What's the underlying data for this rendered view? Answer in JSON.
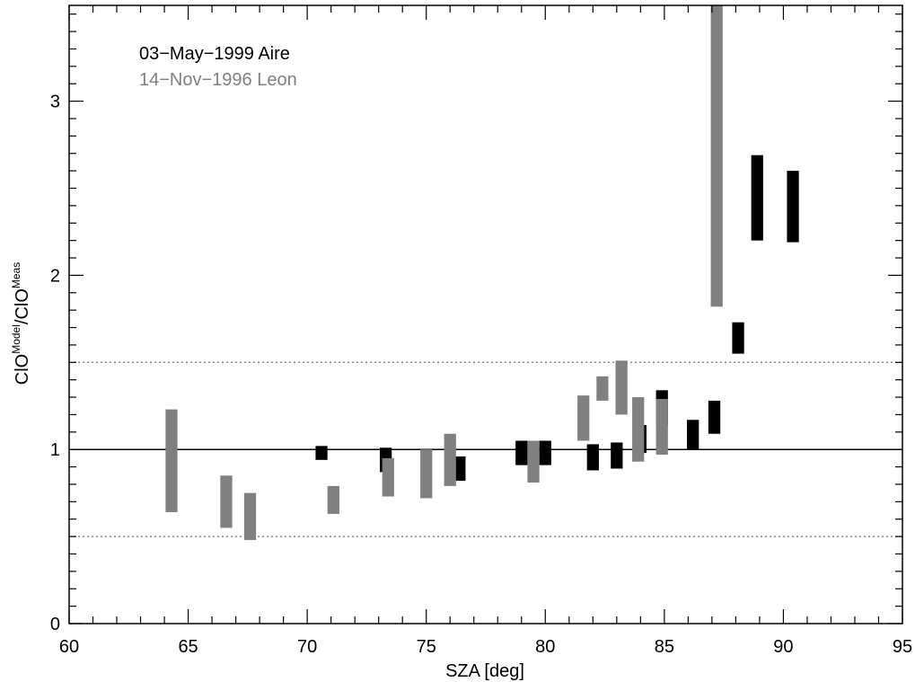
{
  "chart_data": {
    "type": "bar",
    "xlabel": "SZA [deg]",
    "ylabel": {
      "prefix": "ClO",
      "sup1": "Model",
      "mid": "/ClO",
      "sup2": "Meas"
    },
    "xlim": [
      60,
      95
    ],
    "ylim": [
      0,
      3.55
    ],
    "x_ticks": [
      60,
      65,
      70,
      75,
      80,
      85,
      90,
      95
    ],
    "y_ticks": [
      0,
      1,
      2,
      3
    ],
    "x_minor_step": 1,
    "y_minor_step": 0.1,
    "reference_lines": [
      {
        "y": 1.0,
        "style": "solid",
        "color": "#000000"
      },
      {
        "y": 1.5,
        "style": "dotted",
        "color": "#8a8a8a"
      },
      {
        "y": 0.5,
        "style": "dotted",
        "color": "#8a8a8a"
      }
    ],
    "legend_position": "top-left",
    "series": [
      {
        "name": "03−May−1999 Aire",
        "color": "#000000",
        "bar_width_deg": 0.5,
        "points": [
          {
            "x": 70.6,
            "low": 0.94,
            "high": 1.02
          },
          {
            "x": 73.3,
            "low": 0.87,
            "high": 1.01
          },
          {
            "x": 76.4,
            "low": 0.82,
            "high": 0.96
          },
          {
            "x": 79.0,
            "low": 0.91,
            "high": 1.05
          },
          {
            "x": 80.0,
            "low": 0.91,
            "high": 1.05
          },
          {
            "x": 82.0,
            "low": 0.88,
            "high": 1.03
          },
          {
            "x": 83.0,
            "low": 0.89,
            "high": 1.04
          },
          {
            "x": 84.0,
            "low": 0.98,
            "high": 1.14
          },
          {
            "x": 84.9,
            "low": 1.14,
            "high": 1.34
          },
          {
            "x": 86.2,
            "low": 1.0,
            "high": 1.17
          },
          {
            "x": 87.1,
            "low": 1.09,
            "high": 1.28
          },
          {
            "x": 88.1,
            "low": 1.55,
            "high": 1.73
          },
          {
            "x": 88.9,
            "low": 2.2,
            "high": 2.69
          },
          {
            "x": 90.4,
            "low": 2.19,
            "high": 2.6
          }
        ]
      },
      {
        "name": "14−Nov−1996 Leon",
        "color": "#808080",
        "bar_width_deg": 0.5,
        "points": [
          {
            "x": 64.3,
            "low": 0.64,
            "high": 1.23
          },
          {
            "x": 66.6,
            "low": 0.55,
            "high": 0.85
          },
          {
            "x": 67.6,
            "low": 0.48,
            "high": 0.75
          },
          {
            "x": 71.1,
            "low": 0.63,
            "high": 0.79
          },
          {
            "x": 73.4,
            "low": 0.73,
            "high": 0.95
          },
          {
            "x": 75.0,
            "low": 0.72,
            "high": 1.0
          },
          {
            "x": 76.0,
            "low": 0.79,
            "high": 1.09
          },
          {
            "x": 79.5,
            "low": 0.81,
            "high": 1.05
          },
          {
            "x": 81.6,
            "low": 1.05,
            "high": 1.31
          },
          {
            "x": 82.4,
            "low": 1.28,
            "high": 1.42
          },
          {
            "x": 83.2,
            "low": 1.2,
            "high": 1.51
          },
          {
            "x": 83.9,
            "low": 0.93,
            "high": 1.3
          },
          {
            "x": 84.9,
            "low": 0.97,
            "high": 1.29
          },
          {
            "x": 87.2,
            "low": 1.82,
            "high": 3.55
          }
        ]
      }
    ]
  }
}
